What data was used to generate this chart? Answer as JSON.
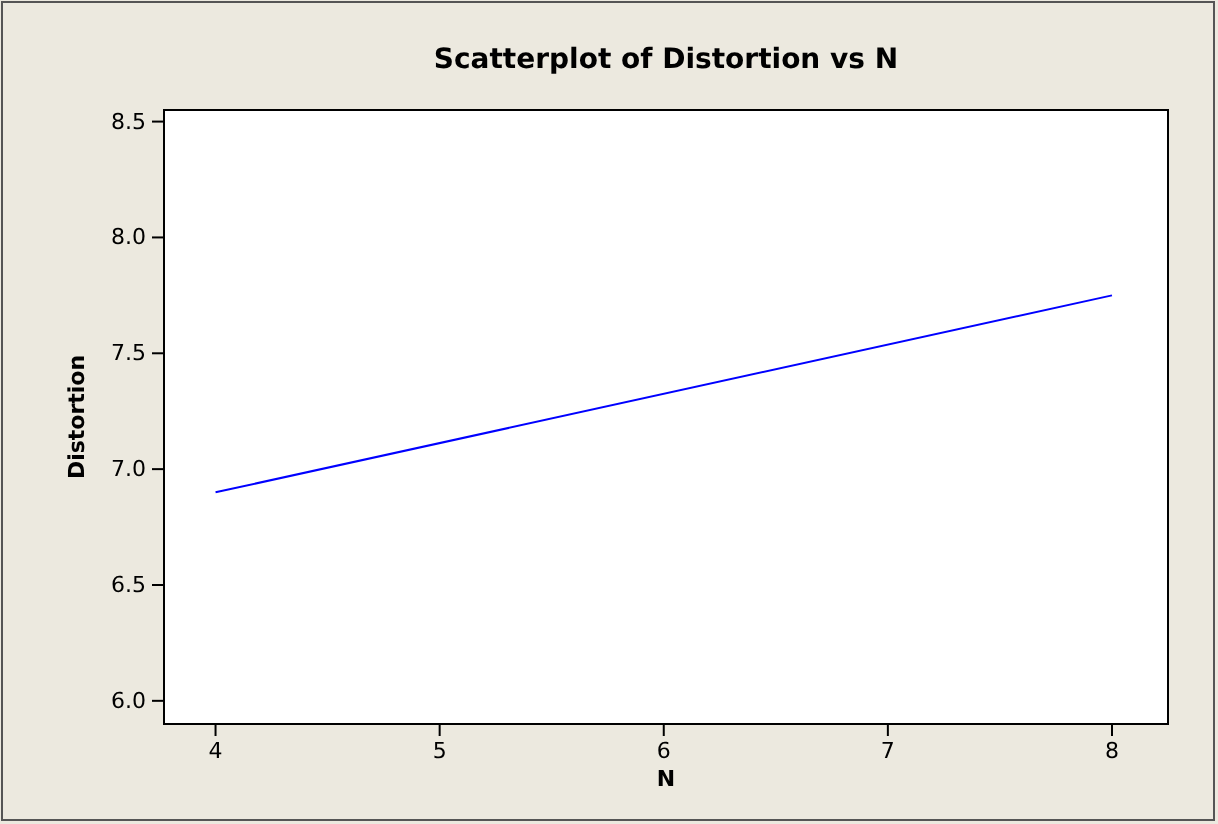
{
  "chart_data": {
    "type": "line",
    "title": "Scatterplot of Distortion vs N",
    "xlabel": "N",
    "ylabel": "Distortion",
    "x": [
      4,
      8
    ],
    "series": [
      {
        "color": "#0000ff",
        "values": [
          6.9,
          7.75
        ]
      }
    ],
    "xlim": [
      3.77,
      8.25
    ],
    "xticks": [
      4,
      5,
      6,
      7,
      8
    ],
    "ylim": [
      5.9,
      8.55
    ],
    "yticks": [
      {
        "value": 6,
        "label": "6.0"
      },
      {
        "value": 6.5,
        "label": "6.5"
      },
      {
        "value": 7,
        "label": "7.0"
      },
      {
        "value": 7.5,
        "label": "7.5"
      },
      {
        "value": 8,
        "label": "8.0"
      },
      {
        "value": 8.5,
        "label": "8.5"
      }
    ],
    "marker": "none",
    "line_style": "solid",
    "grid": false
  }
}
